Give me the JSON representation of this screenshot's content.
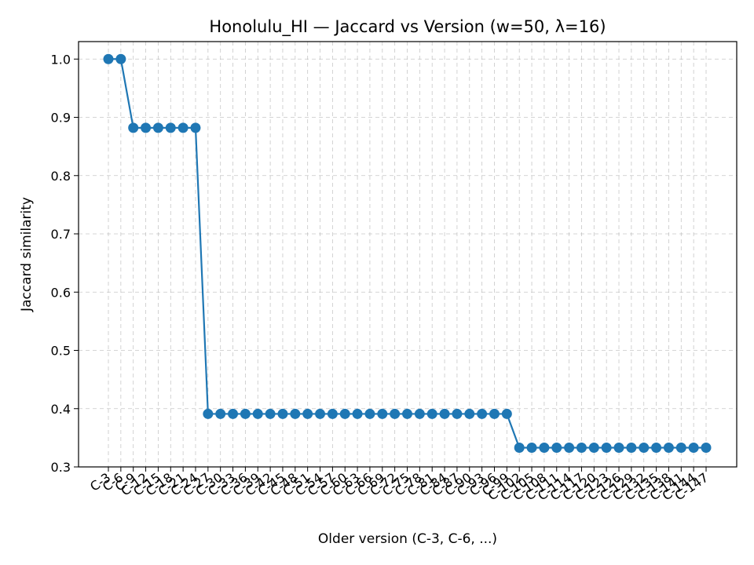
{
  "chart_data": {
    "type": "line",
    "title": "Honolulu_HI — Jaccard vs Version (w=50, λ=16)",
    "xlabel": "Older version (C-3, C-6, ...)",
    "ylabel": "Jaccard similarity",
    "ylim": [
      0.3,
      1.03
    ],
    "yticks": [
      0.3,
      0.4,
      0.5,
      0.6,
      0.7,
      0.8,
      0.9,
      1.0
    ],
    "grid": true,
    "series_color": "#1f77b4",
    "categories": [
      "C-3",
      "C-6",
      "C-9",
      "C-12",
      "C-15",
      "C-18",
      "C-21",
      "C-24",
      "C-27",
      "C-30",
      "C-33",
      "C-36",
      "C-39",
      "C-42",
      "C-45",
      "C-48",
      "C-51",
      "C-54",
      "C-57",
      "C-60",
      "C-63",
      "C-66",
      "C-69",
      "C-72",
      "C-75",
      "C-78",
      "C-81",
      "C-84",
      "C-87",
      "C-90",
      "C-93",
      "C-96",
      "C-99",
      "C-102",
      "C-105",
      "C-108",
      "C-111",
      "C-114",
      "C-117",
      "C-120",
      "C-123",
      "C-126",
      "C-129",
      "C-132",
      "C-135",
      "C-138",
      "C-141",
      "C-144",
      "C-147"
    ],
    "values": [
      1.0,
      1.0,
      0.882,
      0.882,
      0.882,
      0.882,
      0.882,
      0.882,
      0.391,
      0.391,
      0.391,
      0.391,
      0.391,
      0.391,
      0.391,
      0.391,
      0.391,
      0.391,
      0.391,
      0.391,
      0.391,
      0.391,
      0.391,
      0.391,
      0.391,
      0.391,
      0.391,
      0.391,
      0.391,
      0.391,
      0.391,
      0.391,
      0.391,
      0.333,
      0.333,
      0.333,
      0.333,
      0.333,
      0.333,
      0.333,
      0.333,
      0.333,
      0.333,
      0.333,
      0.333,
      0.333,
      0.333,
      0.333,
      0.333
    ]
  }
}
